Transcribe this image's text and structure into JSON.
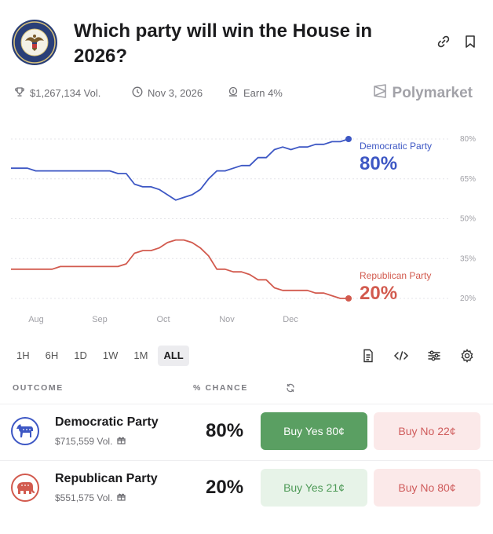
{
  "market": {
    "title": "Which party will win the House in 2026?",
    "volume": "$1,267,134 Vol.",
    "end_date": "Nov 3, 2026",
    "earn": "Earn 4%",
    "brand": "Polymarket",
    "seal_text": "U.S. HOUSE OF REPRESENTATIVES"
  },
  "chart_data": {
    "type": "line",
    "x_tick_labels": [
      "Aug",
      "Sep",
      "Oct",
      "Nov",
      "Dec"
    ],
    "y_tick_labels": [
      "80%",
      "65%",
      "50%",
      "35%",
      "20%"
    ],
    "ylim": [
      20,
      80
    ],
    "grid": true,
    "series": [
      {
        "name": "Democratic Party",
        "color": "#3d57c4",
        "current_label": "80%",
        "values": [
          69,
          69,
          69,
          68,
          68,
          68,
          68,
          68,
          68,
          68,
          68,
          68,
          68,
          67,
          67,
          63,
          62,
          62,
          61,
          59,
          57,
          58,
          59,
          61,
          65,
          68,
          68,
          69,
          70,
          70,
          73,
          73,
          76,
          77,
          76,
          77,
          77,
          78,
          78,
          79,
          79,
          80
        ]
      },
      {
        "name": "Republican Party",
        "color": "#d25a4e",
        "current_label": "20%",
        "values": [
          31,
          31,
          31,
          31,
          31,
          31,
          32,
          32,
          32,
          32,
          32,
          32,
          32,
          32,
          33,
          37,
          38,
          38,
          39,
          41,
          42,
          42,
          41,
          39,
          36,
          31,
          31,
          30,
          30,
          29,
          27,
          27,
          24,
          23,
          23,
          23,
          23,
          22,
          22,
          21,
          20,
          20
        ]
      }
    ]
  },
  "timeframes": [
    "1H",
    "6H",
    "1D",
    "1W",
    "1M",
    "ALL"
  ],
  "active_timeframe": "ALL",
  "table": {
    "col_outcome": "OUTCOME",
    "col_chance": "% CHANCE"
  },
  "outcomes": [
    {
      "name": "Democratic Party",
      "volume": "$715,559 Vol.",
      "chance": "80%",
      "buy_yes": "Buy Yes 80¢",
      "buy_no": "Buy No 22¢",
      "color": "#3d57c4"
    },
    {
      "name": "Republican Party",
      "volume": "$551,575 Vol.",
      "chance": "20%",
      "buy_yes": "Buy Yes 21¢",
      "buy_no": "Buy No 80¢",
      "color": "#d25a4e"
    }
  ],
  "colors": {
    "yes_active_bg": "#5a9f62",
    "yes_active_text": "#ffffff",
    "yes_light_bg": "#e7f3e8",
    "yes_light_text": "#4e9a57",
    "no_bg": "#fbe9e9",
    "no_text": "#cf5b5b"
  }
}
